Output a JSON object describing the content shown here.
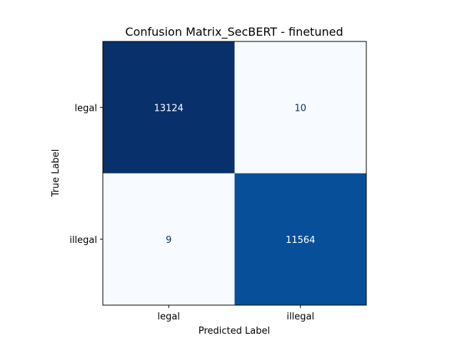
{
  "chart_data": {
    "type": "heatmap",
    "title": "Confusion Matrix_SecBERT - finetuned",
    "xlabel": "Predicted Label",
    "ylabel": "True Label",
    "x_categories": [
      "legal",
      "illegal"
    ],
    "y_categories": [
      "legal",
      "illegal"
    ],
    "values": [
      [
        13124,
        10
      ],
      [
        9,
        11564
      ]
    ],
    "colormap": "Blues",
    "colorbar": false,
    "grid": false
  }
}
